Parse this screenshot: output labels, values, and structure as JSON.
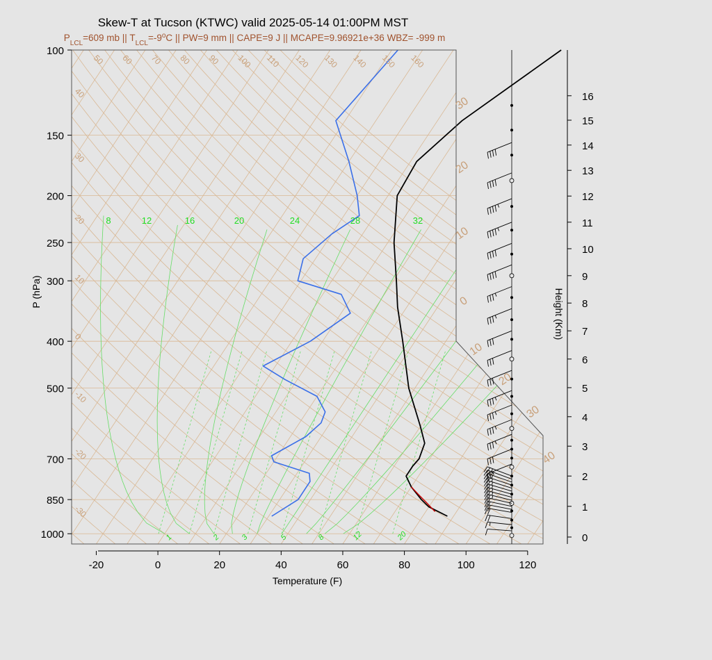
{
  "title": "Skew-T at Tucson (KTWC) valid 2025-05-14 01:00PM MST",
  "subtitle": {
    "plcl_prefix": "P",
    "plcl_sub": "LCL",
    "plcl_value": "=609 mb || T",
    "tlcl_sub": "LCL",
    "tlcl_value": "=-9",
    "deg_sup": "o",
    "rest": "C || PW=9 mm || CAPE=9 J || MCAPE=9.96921e+36 WBZ= -999 m"
  },
  "colors": {
    "background": "#e5e5e5",
    "plot_background": "#e5e5e5",
    "isotherm": "#d9b894",
    "isobar": "#d9b894",
    "dry_adiabat": "#d9b894",
    "mixing_ratio": "#66dd66",
    "moist_adiabat": "#66dd66",
    "temperature": "#000000",
    "dewpoint": "#3a6fe8",
    "parcel": "#cc0000",
    "wind_barb": "#000000",
    "title_sub": "#a0522d",
    "iso_label": "#c8a07a",
    "mix_label": "#22dd22"
  },
  "chart_data": {
    "type": "skew-t",
    "title": "Skew-T at Tucson (KTWC) valid 2025-05-14 01:00PM MST",
    "xlabel": "Temperature (F)",
    "ylabel": "P (hPa)",
    "y2label": "Height (Km)",
    "xlim": [
      -28,
      125
    ],
    "ylim": [
      1050,
      100
    ],
    "y_scale": "log",
    "x_ticks": [
      -20,
      0,
      20,
      40,
      60,
      80,
      100,
      120
    ],
    "y_ticks": [
      100,
      150,
      200,
      250,
      300,
      400,
      500,
      700,
      850,
      1000
    ],
    "height_ticks_km": [
      0,
      1,
      2,
      3,
      4,
      5,
      6,
      7,
      8,
      9,
      10,
      11,
      12,
      13,
      14,
      15,
      16
    ],
    "isotherm_labels_deg": [
      -30,
      -20,
      -10,
      0,
      10,
      20,
      30,
      40,
      50,
      60,
      70,
      80,
      90,
      100,
      110,
      120,
      130,
      140,
      150,
      160
    ],
    "dry_adiabat_labels": [
      -10,
      0,
      10,
      20,
      30,
      40
    ],
    "dry_adiabat_upper_labels": [
      0,
      10,
      20,
      30
    ],
    "mixing_ratio_labels": [
      8,
      12,
      16,
      20,
      24,
      28,
      32
    ],
    "moist_adiabat_labels": [
      1,
      2,
      3,
      5,
      8,
      12,
      20
    ],
    "temperature_F": [
      {
        "p": 920,
        "t": 88
      },
      {
        "p": 880,
        "t": 80
      },
      {
        "p": 850,
        "t": 76
      },
      {
        "p": 800,
        "t": 70
      },
      {
        "p": 760,
        "t": 66
      },
      {
        "p": 725,
        "t": 66
      },
      {
        "p": 700,
        "t": 66.5
      },
      {
        "p": 650,
        "t": 65
      },
      {
        "p": 600,
        "t": 60
      },
      {
        "p": 500,
        "t": 48
      },
      {
        "p": 400,
        "t": 36
      },
      {
        "p": 340,
        "t": 27
      },
      {
        "p": 300,
        "t": 21
      },
      {
        "p": 250,
        "t": 12
      },
      {
        "p": 200,
        "t": 3
      },
      {
        "p": 170,
        "t": 2
      },
      {
        "p": 140,
        "t": 8
      },
      {
        "p": 100,
        "t": 25
      }
    ],
    "dewpoint_F": [
      {
        "p": 920,
        "t": 31
      },
      {
        "p": 850,
        "t": 36
      },
      {
        "p": 780,
        "t": 36
      },
      {
        "p": 750,
        "t": 34
      },
      {
        "p": 710,
        "t": 20
      },
      {
        "p": 690,
        "t": 18
      },
      {
        "p": 630,
        "t": 25
      },
      {
        "p": 590,
        "t": 27
      },
      {
        "p": 560,
        "t": 26
      },
      {
        "p": 520,
        "t": 20
      },
      {
        "p": 480,
        "t": 6
      },
      {
        "p": 450,
        "t": -4
      },
      {
        "p": 400,
        "t": 6
      },
      {
        "p": 350,
        "t": 13
      },
      {
        "p": 320,
        "t": 6
      },
      {
        "p": 300,
        "t": -11
      },
      {
        "p": 270,
        "t": -14
      },
      {
        "p": 240,
        "t": -10
      },
      {
        "p": 220,
        "t": -5
      },
      {
        "p": 200,
        "t": -10
      },
      {
        "p": 170,
        "t": -20
      },
      {
        "p": 140,
        "t": -33
      },
      {
        "p": 100,
        "t": -28
      }
    ],
    "parcel_F": [
      {
        "p": 900,
        "t": 83
      },
      {
        "p": 860,
        "t": 78
      },
      {
        "p": 830,
        "t": 74
      },
      {
        "p": 800,
        "t": 70
      }
    ],
    "wind_barb_levels_km": [
      0.2,
      0.4,
      0.6,
      0.8,
      0.9,
      1.0,
      1.1,
      1.2,
      1.3,
      1.4,
      1.5,
      1.6,
      1.7,
      1.8,
      1.9,
      2.0,
      2.4,
      2.9,
      3.4,
      3.9,
      4.4,
      4.9,
      5.6,
      6.3,
      7.0,
      7.8,
      8.6,
      9.4,
      10.2,
      11.0,
      11.9,
      12.9,
      14.1
    ],
    "wind_barb_speeds_kt": [
      10,
      15,
      20,
      20,
      20,
      20,
      20,
      25,
      25,
      25,
      25,
      25,
      25,
      25,
      25,
      25,
      25,
      30,
      35,
      35,
      35,
      35,
      30,
      30,
      30,
      35,
      35,
      40,
      40,
      45,
      45,
      40,
      40
    ],
    "height_markers_km": [
      0.05,
      0.3,
      0.55,
      0.85,
      1.1,
      1.4,
      1.7,
      2.0,
      2.3,
      2.6,
      2.9,
      3.2,
      3.6,
      4.1,
      4.7,
      5.3,
      6.0,
      6.7,
      7.4,
      8.2,
      9.0,
      9.8,
      10.7,
      11.6,
      12.6,
      13.6,
      14.6,
      15.6
    ]
  }
}
